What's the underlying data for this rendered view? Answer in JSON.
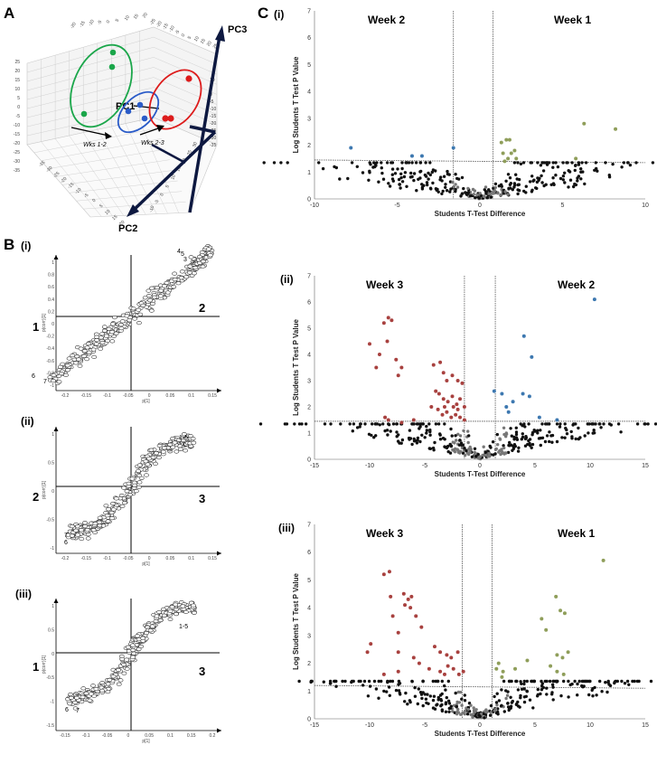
{
  "panels": {
    "a": "A",
    "b": "B",
    "c": "C",
    "b_i": "(i)",
    "b_ii": "(ii)",
    "b_iii": "(iii)",
    "c_i": "(i)",
    "c_ii": "(ii)",
    "c_iii": "(iii)"
  },
  "colors": {
    "week1": "#8f9e5a",
    "week2": "#3d78b0",
    "week3": "#a8413f",
    "ns": "#111111",
    "ns_light": "#777777",
    "pca_green": "#1aa64a",
    "pca_blue": "#2a5bc8",
    "pca_red": "#dd1b1b"
  },
  "chart_data": [
    {
      "id": "pca3d",
      "type": "scatter",
      "title": "",
      "axes": [
        "PC1",
        "PC2",
        "PC3"
      ],
      "groups": [
        {
          "name": "Week 1",
          "color": "green",
          "n": 3
        },
        {
          "name": "Week 2",
          "color": "blue",
          "n": 3
        },
        {
          "name": "Week 3",
          "color": "red",
          "n": 3
        }
      ],
      "annotations": [
        "Wks 1-2",
        "Wks 2-3"
      ],
      "tick_labels": [
        "-20",
        "-15",
        "-10",
        "-5",
        "0",
        "5",
        "10",
        "15",
        "20",
        "25",
        "-25",
        "-30",
        "-35"
      ],
      "tick_top": [
        "-20",
        "-15",
        "-10",
        "-5",
        "0",
        "5",
        "10",
        "15",
        "20"
      ],
      "tick_top2": [
        "-25",
        "-20",
        "-15",
        "-10",
        "-5",
        "0",
        "5",
        "10",
        "15",
        "20",
        "25"
      ],
      "tick_left": [
        "25",
        "20",
        "15",
        "10",
        "5",
        "0",
        "-5",
        "-10",
        "-15",
        "-20",
        "-25",
        "-30",
        "-35"
      ],
      "tick_bottom": [
        "-35",
        "-30",
        "-25",
        "-20",
        "-15",
        "-10",
        "-5",
        "0",
        "5",
        "10",
        "15",
        "20"
      ],
      "tick_right": [
        "10",
        "5",
        "0",
        "-5",
        "-10",
        "-15",
        "-20",
        "-25",
        "-30",
        "-35"
      ],
      "tick_mid": [
        "-10",
        "-5",
        "0",
        "5",
        "10",
        "15",
        "20",
        "25",
        "30"
      ]
    },
    {
      "id": "splot_i",
      "type": "scatter",
      "xlabel": "p[1]",
      "ylabel": "p(corr)[1]",
      "xticks": [
        "-0.2",
        "-0.15",
        "-0.1",
        "-0.05",
        "0",
        "0.05",
        "0.1",
        "0.15"
      ],
      "yticks": [
        "1",
        "0.8",
        "0.6",
        "0.4",
        "0.2",
        "0",
        "-0.2",
        "-0.4",
        "-0.6",
        "-0.8",
        "-1"
      ],
      "quadrant_labels": [
        "2",
        "1"
      ],
      "point_labels": [
        "1",
        "2",
        "3",
        "4",
        "5",
        "6",
        "7"
      ],
      "n_points": 300
    },
    {
      "id": "splot_ii",
      "type": "scatter",
      "xlabel": "p[1]",
      "ylabel": "p(corr)[1]",
      "xticks": [
        "-0.2",
        "-0.15",
        "-0.1",
        "-0.05",
        "0",
        "0.05",
        "0.1",
        "0.15"
      ],
      "yticks": [
        "1",
        "0.5",
        "0",
        "-0.5",
        "-1"
      ],
      "quadrant_labels": [
        "3",
        "2"
      ],
      "point_labels": [
        "1-5",
        "7",
        "6"
      ],
      "n_points": 300
    },
    {
      "id": "splot_iii",
      "type": "scatter",
      "xlabel": "p[1]",
      "ylabel": "p(corr)[1]",
      "xticks": [
        "-0.15",
        "-0.1",
        "-0.05",
        "0",
        "0.05",
        "0.1",
        "0.15",
        "0.2"
      ],
      "yticks": [
        "1",
        "0.5",
        "0",
        "-0.5",
        "-1",
        "-1.5"
      ],
      "quadrant_labels": [
        "3",
        "1"
      ],
      "point_labels": [
        "1-5",
        "6",
        "7"
      ],
      "n_points": 300
    },
    {
      "id": "volcano_i",
      "type": "scatter",
      "left_group": "Week 2",
      "right_group": "Week 1",
      "xlabel": "Students T-Test Difference",
      "ylabel": "Log Students T Test P Value",
      "xlim": [
        -10,
        10
      ],
      "ylim": [
        0,
        7
      ],
      "xticks": [
        "-10",
        "-5",
        "0",
        "5",
        "10"
      ],
      "yticks": [
        "0",
        "1",
        "2",
        "3",
        "4",
        "5",
        "6",
        "7"
      ],
      "significant_left": [
        [
          -7.8,
          1.9
        ],
        [
          -4.1,
          1.6
        ],
        [
          -3.5,
          1.6
        ],
        [
          -1.6,
          1.9
        ]
      ],
      "significant_right": [
        [
          1.3,
          2.1
        ],
        [
          1.6,
          2.2
        ],
        [
          1.8,
          2.2
        ],
        [
          1.4,
          1.7
        ],
        [
          1.9,
          1.7
        ],
        [
          2.1,
          1.8
        ],
        [
          1.5,
          1.4
        ],
        [
          1.7,
          1.5
        ],
        [
          2.2,
          1.5
        ],
        [
          6.3,
          2.8
        ],
        [
          8.2,
          2.6
        ],
        [
          5.8,
          1.5
        ]
      ],
      "n_nonsignificant": 320
    },
    {
      "id": "volcano_ii",
      "type": "scatter",
      "left_group": "Week 3",
      "right_group": "Week 2",
      "xlabel": "Students T-Test Difference",
      "ylabel": "Log Students T Test P Value",
      "xlim": [
        -15,
        15
      ],
      "ylim": [
        0,
        7
      ],
      "xticks": [
        "-15",
        "-10",
        "-5",
        "0",
        "5",
        "10",
        "15"
      ],
      "yticks": [
        "0",
        "1",
        "2",
        "3",
        "4",
        "5",
        "6",
        "7"
      ],
      "significant_left": [
        [
          -8.3,
          5.4
        ],
        [
          -8.7,
          5.2
        ],
        [
          -8.0,
          5.3
        ],
        [
          -10.0,
          4.4
        ],
        [
          -8.4,
          4.5
        ],
        [
          -9.1,
          4.0
        ],
        [
          -7.6,
          3.8
        ],
        [
          -7.1,
          3.5
        ],
        [
          -7.4,
          3.2
        ],
        [
          -9.4,
          3.5
        ],
        [
          -8.3,
          1.5
        ],
        [
          -8.6,
          1.6
        ],
        [
          -7.1,
          1.4
        ],
        [
          -6.0,
          1.5
        ],
        [
          -4.2,
          3.6
        ],
        [
          -3.6,
          3.7
        ],
        [
          -3.3,
          3.3
        ],
        [
          -3.0,
          3.0
        ],
        [
          -2.5,
          3.2
        ],
        [
          -2.0,
          3.0
        ],
        [
          -1.6,
          2.9
        ],
        [
          -4.0,
          2.6
        ],
        [
          -3.7,
          2.5
        ],
        [
          -3.3,
          2.3
        ],
        [
          -2.9,
          2.2
        ],
        [
          -2.5,
          2.4
        ],
        [
          -2.1,
          2.1
        ],
        [
          -1.8,
          2.3
        ],
        [
          -1.4,
          2.0
        ],
        [
          -3.8,
          1.9
        ],
        [
          -3.4,
          1.7
        ],
        [
          -3.0,
          1.8
        ],
        [
          -2.6,
          1.6
        ],
        [
          -2.2,
          1.7
        ],
        [
          -1.8,
          1.6
        ],
        [
          -1.4,
          1.5
        ],
        [
          -3.2,
          2.0
        ],
        [
          -2.4,
          2.0
        ],
        [
          -4.4,
          2.0
        ],
        [
          -2.0,
          1.9
        ]
      ],
      "significant_right": [
        [
          10.4,
          6.1
        ],
        [
          4.0,
          4.7
        ],
        [
          4.7,
          3.9
        ],
        [
          1.3,
          2.6
        ],
        [
          2.0,
          2.5
        ],
        [
          3.9,
          2.5
        ],
        [
          4.5,
          2.4
        ],
        [
          3.0,
          2.2
        ],
        [
          2.4,
          2.0
        ],
        [
          2.6,
          1.8
        ],
        [
          5.4,
          1.6
        ],
        [
          7.0,
          1.5
        ]
      ],
      "n_nonsignificant": 330
    },
    {
      "id": "volcano_iii",
      "type": "scatter",
      "left_group": "Week 3",
      "right_group": "Week 1",
      "xlabel": "Students T-Test Difference",
      "ylabel": "Log Students T Test P Value",
      "xlim": [
        -15,
        15
      ],
      "ylim": [
        0,
        7
      ],
      "xticks": [
        "-15",
        "-10",
        "-5",
        "0",
        "5",
        "10",
        "15"
      ],
      "yticks": [
        "0",
        "1",
        "2",
        "3",
        "4",
        "5",
        "6",
        "7"
      ],
      "significant_left": [
        [
          -8.2,
          5.3
        ],
        [
          -8.7,
          5.2
        ],
        [
          -6.9,
          4.5
        ],
        [
          -6.5,
          4.3
        ],
        [
          -6.2,
          4.4
        ],
        [
          -6.8,
          4.1
        ],
        [
          -6.3,
          4.0
        ],
        [
          -8.1,
          4.4
        ],
        [
          -7.9,
          3.7
        ],
        [
          -5.8,
          3.7
        ],
        [
          -5.3,
          3.3
        ],
        [
          -7.4,
          3.1
        ],
        [
          -10.2,
          2.4
        ],
        [
          -9.9,
          2.7
        ],
        [
          -7.4,
          2.4
        ],
        [
          -6.0,
          2.2
        ],
        [
          -5.5,
          2.0
        ],
        [
          -4.1,
          2.6
        ],
        [
          -3.6,
          2.4
        ],
        [
          -3.0,
          2.3
        ],
        [
          -2.6,
          2.2
        ],
        [
          -2.0,
          2.4
        ],
        [
          -4.6,
          1.8
        ],
        [
          -3.6,
          1.7
        ],
        [
          -2.9,
          1.9
        ],
        [
          -2.4,
          1.8
        ],
        [
          -1.9,
          1.6
        ],
        [
          -1.5,
          1.7
        ],
        [
          -7.4,
          1.7
        ],
        [
          -8.7,
          1.6
        ],
        [
          -3.2,
          1.6
        ]
      ],
      "significant_right": [
        [
          11.2,
          5.7
        ],
        [
          6.9,
          4.4
        ],
        [
          7.3,
          3.9
        ],
        [
          7.7,
          3.8
        ],
        [
          5.6,
          3.6
        ],
        [
          6.0,
          3.2
        ],
        [
          8.0,
          2.4
        ],
        [
          7.5,
          2.2
        ],
        [
          7.0,
          2.3
        ],
        [
          6.4,
          1.9
        ],
        [
          7.0,
          1.7
        ],
        [
          7.6,
          1.6
        ],
        [
          4.3,
          2.1
        ],
        [
          1.5,
          1.8
        ],
        [
          1.7,
          2.0
        ],
        [
          2.1,
          1.7
        ],
        [
          3.2,
          1.8
        ],
        [
          2.0,
          1.5
        ]
      ],
      "n_nonsignificant": 330
    }
  ]
}
